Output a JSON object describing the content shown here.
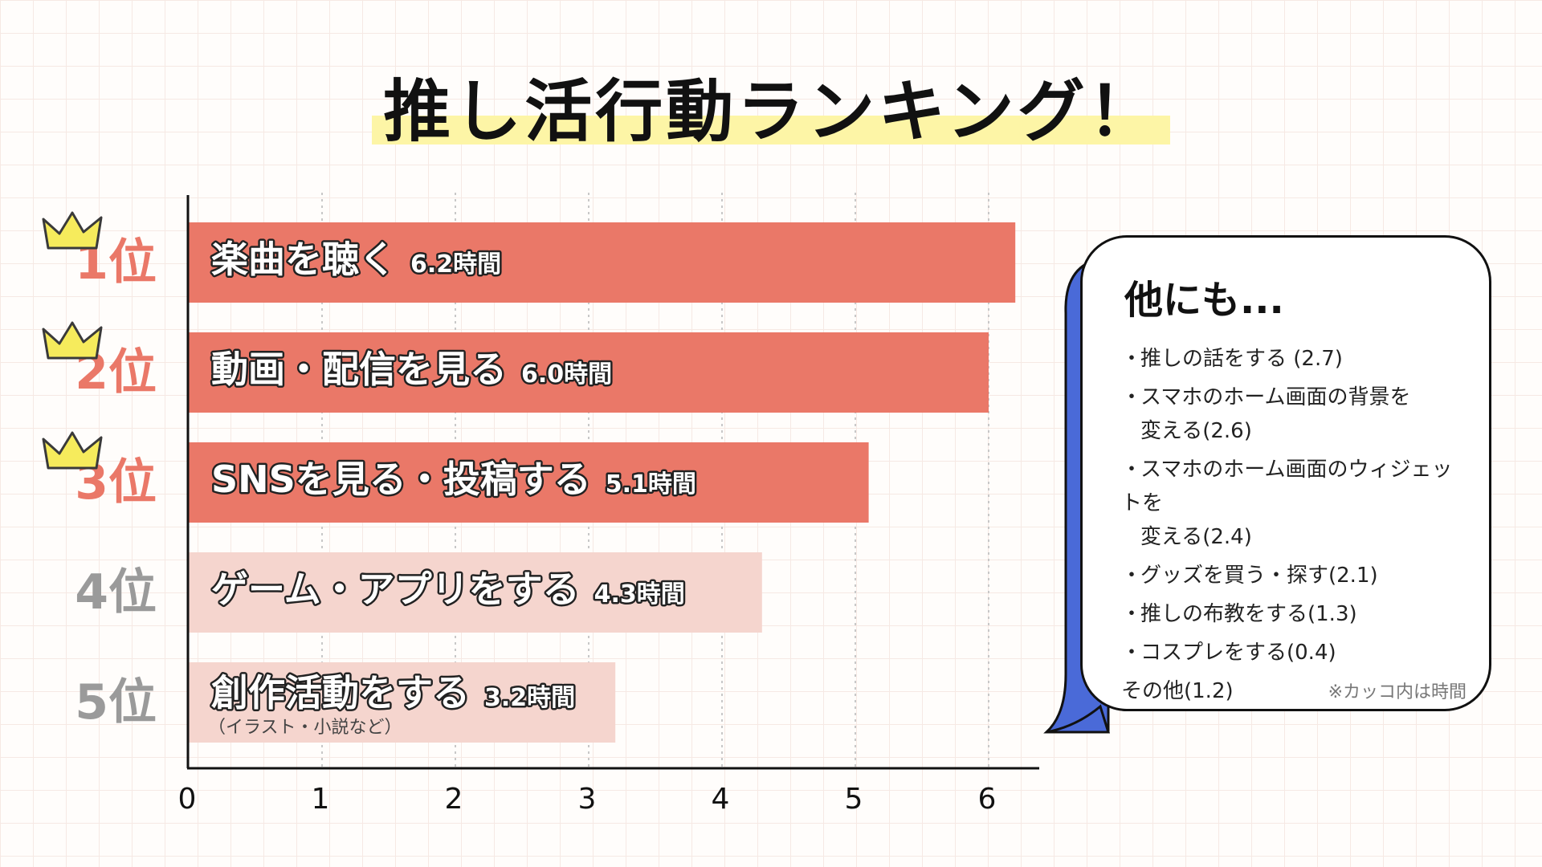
{
  "title": "推し活行動ランキング！",
  "colors": {
    "top_bar": "#ea7868",
    "low_bar": "#f5d5ce",
    "top_rank": "#ea7868",
    "low_rank": "#9a9a9a",
    "crown": "#f6eb5c",
    "bubble_shadow": "#4a6ad8"
  },
  "chart_data": {
    "type": "bar",
    "orientation": "horizontal",
    "categories": [
      "楽曲を聴く",
      "動画・配信を見る",
      "SNSを見る・投稿する",
      "ゲーム・アプリをする",
      "創作活動をする"
    ],
    "values": [
      6.2,
      6.0,
      5.1,
      4.3,
      3.2
    ],
    "value_labels": [
      "6.2時間",
      "6.0時間",
      "5.1時間",
      "4.3時間",
      "3.2時間"
    ],
    "ranks": [
      "1位",
      "2位",
      "3位",
      "4位",
      "5位"
    ],
    "sublabels": [
      "",
      "",
      "",
      "",
      "（イラスト・小説など）"
    ],
    "x_ticks": [
      "0",
      "1",
      "2",
      "3",
      "4",
      "5",
      "6"
    ],
    "xlim": [
      0,
      6.4
    ],
    "grid": true
  },
  "others": {
    "heading": "他にも...",
    "bullet": "・",
    "items": [
      [
        "推しの話をする (2.7)"
      ],
      [
        "スマホのホーム画面の背景を",
        "変える(2.6)"
      ],
      [
        "スマホのホーム画面のウィジェットを",
        "変える(2.4)"
      ],
      [
        "グッズを買う・探す(2.1)"
      ],
      [
        "推しの布教をする(1.3)"
      ],
      [
        "コスプレをする(0.4)"
      ]
    ],
    "last": "その他(1.2)",
    "note": "※カッコ内は時間"
  }
}
